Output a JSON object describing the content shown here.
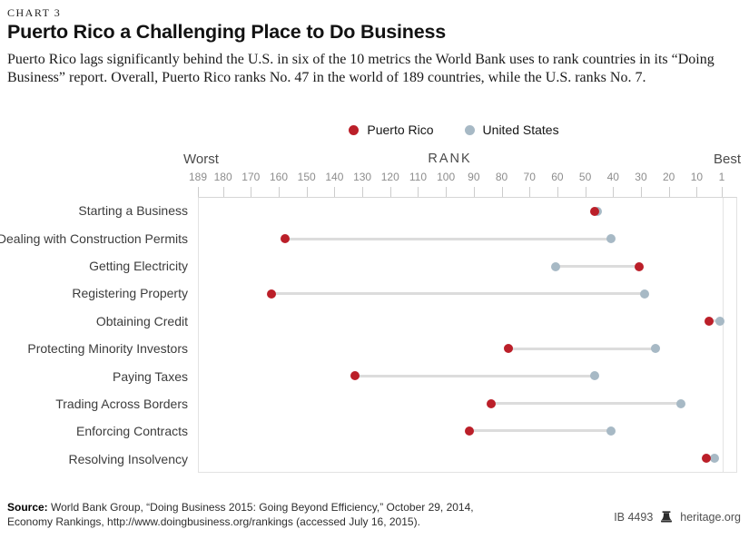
{
  "chart_number": "CHART 3",
  "title": "Puerto Rico a Challenging Place to Do Business",
  "deck": "Puerto Rico lags significantly behind the U.S. in six of the 10 metrics the World Bank uses to rank countries in its “Doing Business” report. Overall, Puerto Rico ranks No. 47 in the world of 189 countries, while the U.S. ranks No. 7.",
  "chart_data": {
    "type": "dumbbell",
    "title": "Puerto Rico a Challenging Place to Do Business",
    "axis": {
      "label": "RANK",
      "left_label": "Worst",
      "right_label": "Best",
      "min": 1,
      "max": 189,
      "reversed": true,
      "ticks": [
        189,
        180,
        170,
        160,
        150,
        140,
        130,
        120,
        110,
        100,
        90,
        80,
        70,
        60,
        50,
        40,
        30,
        20,
        10,
        1
      ]
    },
    "categories": [
      "Starting a Business",
      "Dealing with Construction Permits",
      "Getting Electricity",
      "Registering Property",
      "Obtaining Credit",
      "Protecting Minority Investors",
      "Paying Taxes",
      "Trading Across Borders",
      "Enforcing Contracts",
      "Resolving Insolvency"
    ],
    "series": [
      {
        "name": "Puerto Rico",
        "color": "#bb1f29",
        "values": [
          47,
          158,
          31,
          163,
          6,
          78,
          133,
          84,
          92,
          7
        ]
      },
      {
        "name": "United States",
        "color": "#a7b9c5",
        "values": [
          46,
          41,
          61,
          29,
          2,
          25,
          47,
          16,
          41,
          4
        ]
      }
    ],
    "connector_color": "#dcdcdc",
    "grid_color": "#e3e3e3",
    "legend_position": "top-center"
  },
  "footer": {
    "source_label": "Source:",
    "source_text": " World Bank Group, “Doing Business 2015: Going Beyond Efficiency,” October 29, 2014, Economy Rankings, http://www.doingbusiness.org/rankings (accessed July 16, 2015).",
    "report_id": "IB 4493",
    "site": "heritage.org"
  }
}
